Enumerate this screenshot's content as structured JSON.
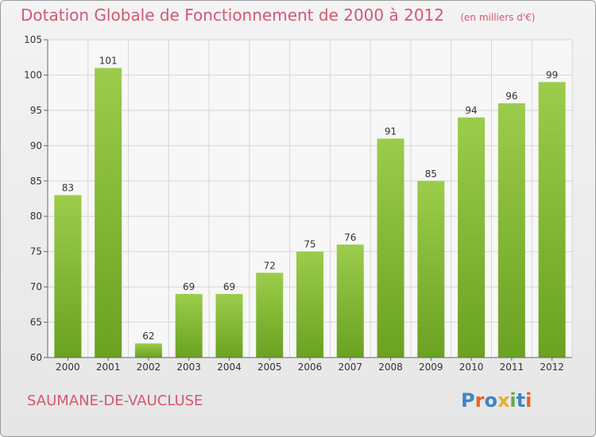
{
  "header": {
    "title": "Dotation Globale de Fonctionnement de 2000 à 2012",
    "unit": "(en milliers d'€)"
  },
  "footer": {
    "commune": "SAUMANE-DE-VAUCLUSE",
    "logo_text": "Proxiti",
    "logo_colors": [
      "#3d85c6",
      "#e3642a",
      "#3d85c6",
      "#e3b02a",
      "#6aa84f",
      "#3d85c6",
      "#e3642a"
    ]
  },
  "chart_data": {
    "type": "bar",
    "categories": [
      "2000",
      "2001",
      "2002",
      "2003",
      "2004",
      "2005",
      "2006",
      "2007",
      "2008",
      "2009",
      "2010",
      "2011",
      "2012"
    ],
    "values": [
      83,
      101,
      62,
      69,
      69,
      72,
      75,
      76,
      91,
      85,
      94,
      96,
      99
    ],
    "ylim": [
      60,
      105
    ],
    "yticks": [
      60,
      65,
      70,
      75,
      80,
      85,
      90,
      95,
      100,
      105
    ],
    "grid": true,
    "bar_color_top": "#9ccc4b",
    "bar_color_bottom": "#6aa221"
  }
}
